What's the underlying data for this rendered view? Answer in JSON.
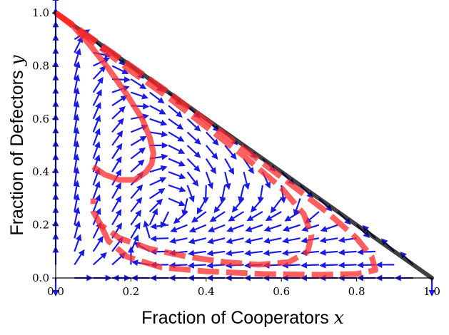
{
  "chart_data": {
    "type": "line",
    "title": "",
    "xlabel": "Fraction of Cooperators",
    "xlabel_var": "x",
    "ylabel": "Fraction of Defectors",
    "ylabel_var": "y",
    "xlim": [
      0,
      1
    ],
    "ylim": [
      0,
      1
    ],
    "xticks": [
      "0.0",
      "0.2",
      "0.4",
      "0.6",
      "0.8",
      "1.0"
    ],
    "yticks": [
      "0.0",
      "0.2",
      "0.4",
      "0.6",
      "0.8",
      "1.0"
    ],
    "grid": false,
    "legend": "none",
    "simplex_edge": {
      "color": "#000000",
      "points": [
        [
          0,
          1
        ],
        [
          1,
          0
        ]
      ]
    },
    "arrow_field": {
      "color": "#1a1ae6",
      "grid_step": 0.05,
      "region": "x + y <= 1"
    },
    "series": [
      {
        "style": "solid",
        "color": "#ff2a2a",
        "x": [
          0.0,
          0.04,
          0.09,
          0.14,
          0.19,
          0.23,
          0.25,
          0.26,
          0.255,
          0.24,
          0.21,
          0.17,
          0.13,
          0.1
        ],
        "y": [
          1.0,
          0.96,
          0.88,
          0.79,
          0.69,
          0.6,
          0.53,
          0.47,
          0.43,
          0.4,
          0.37,
          0.37,
          0.39,
          0.42
        ]
      },
      {
        "style": "dashed",
        "color": "#ff2a2a",
        "x": [
          0.0,
          0.1,
          0.2,
          0.3,
          0.4,
          0.5,
          0.6,
          0.66,
          0.68,
          0.67,
          0.62,
          0.54,
          0.45,
          0.35,
          0.25,
          0.17,
          0.12,
          0.1,
          0.1
        ],
        "y": [
          1.0,
          0.89,
          0.78,
          0.68,
          0.57,
          0.46,
          0.34,
          0.24,
          0.16,
          0.1,
          0.06,
          0.05,
          0.06,
          0.08,
          0.11,
          0.15,
          0.2,
          0.25,
          0.3
        ]
      },
      {
        "style": "dashed",
        "color": "#ff2a2a",
        "x": [
          0.0,
          0.15,
          0.3,
          0.45,
          0.6,
          0.72,
          0.8,
          0.84,
          0.85,
          0.8,
          0.7,
          0.55,
          0.4,
          0.28,
          0.19,
          0.14,
          0.12
        ],
        "y": [
          1.0,
          0.85,
          0.7,
          0.54,
          0.38,
          0.25,
          0.15,
          0.08,
          0.03,
          0.015,
          0.012,
          0.015,
          0.025,
          0.04,
          0.08,
          0.14,
          0.2
        ]
      }
    ]
  }
}
